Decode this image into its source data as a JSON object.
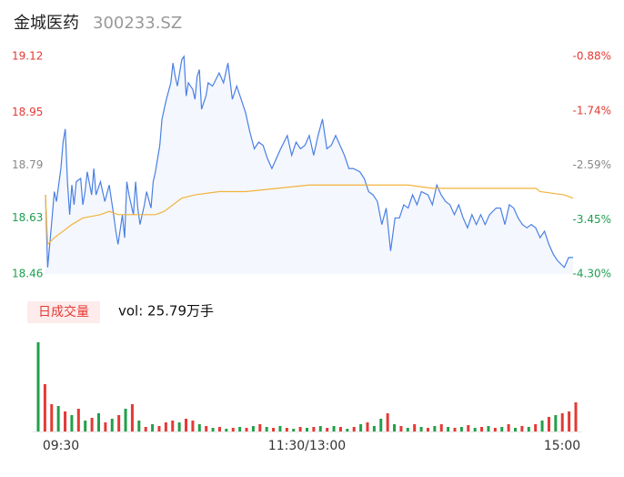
{
  "header": {
    "title": "金城医药",
    "code": "300233.SZ"
  },
  "chart_data": [
    {
      "type": "line",
      "xlim": [
        0,
        240
      ],
      "ylim": [
        18.46,
        19.12
      ],
      "yticks": [
        18.46,
        18.63,
        18.79,
        18.95,
        19.12
      ],
      "ytick_colors": [
        "#1e9e50",
        "#1e9e50",
        "#888888",
        "#e53935",
        "#e53935"
      ],
      "y2lim": [
        -4.3,
        -0.88
      ],
      "y2ticks": [
        {
          "value": -4.3,
          "label": "-4.30%"
        },
        {
          "value": -3.45,
          "label": "-3.45%"
        },
        {
          "value": -2.59,
          "label": "-2.59%"
        },
        {
          "value": -1.74,
          "label": "-1.74%"
        },
        {
          "value": -0.88,
          "label": "-0.88%"
        }
      ],
      "y2tick_colors": [
        "#1e9e50",
        "#1e9e50",
        "#888888",
        "#e53935",
        "#e53935"
      ],
      "area_color": "#f4f7fd",
      "series": [
        {
          "color": "#4a80e4",
          "x": [
            0,
            1,
            3,
            4,
            5,
            7,
            8,
            9,
            10,
            11,
            12,
            13,
            14,
            16,
            17,
            18,
            19,
            21,
            22,
            23,
            25,
            27,
            29,
            31,
            32,
            33,
            35,
            36,
            37,
            38,
            40,
            41,
            42,
            43,
            45,
            46,
            48,
            49,
            50,
            52,
            53,
            54,
            55,
            57,
            58,
            59,
            60,
            62,
            63,
            64,
            65,
            67,
            68,
            69,
            70,
            71,
            73,
            74,
            76,
            79,
            81,
            83,
            85,
            87,
            89,
            91,
            93,
            95,
            97,
            99,
            101,
            103,
            105,
            107,
            110,
            112,
            114,
            116,
            118,
            120,
            122,
            124,
            126,
            128,
            130,
            132,
            134,
            136,
            138,
            140,
            143,
            145,
            147,
            149,
            151,
            153,
            155,
            157,
            159,
            161,
            163,
            165,
            167,
            169,
            171,
            174,
            176,
            178,
            180,
            182,
            184,
            186,
            188,
            190,
            192,
            194,
            196,
            198,
            200,
            202,
            205,
            207,
            209,
            211,
            213,
            215,
            217,
            219,
            221,
            223,
            225,
            227,
            229,
            231,
            233,
            236,
            238,
            240
          ],
          "values": [
            18.7,
            18.48,
            18.63,
            18.71,
            18.68,
            18.78,
            18.86,
            18.9,
            18.74,
            18.64,
            18.73,
            18.67,
            18.74,
            18.75,
            18.67,
            18.71,
            18.77,
            18.7,
            18.78,
            18.7,
            18.74,
            18.68,
            18.73,
            18.64,
            18.59,
            18.55,
            18.64,
            18.57,
            18.74,
            18.7,
            18.64,
            18.74,
            18.66,
            18.61,
            18.67,
            18.71,
            18.66,
            18.74,
            18.77,
            18.85,
            18.93,
            18.96,
            18.99,
            19.04,
            19.1,
            19.06,
            19.03,
            19.11,
            19.12,
            19.0,
            19.04,
            19.02,
            18.99,
            19.06,
            19.08,
            18.96,
            19.0,
            19.04,
            19.03,
            19.07,
            19.04,
            19.1,
            18.99,
            19.03,
            18.99,
            18.95,
            18.89,
            18.84,
            18.86,
            18.85,
            18.81,
            18.78,
            18.81,
            18.84,
            18.88,
            18.82,
            18.86,
            18.84,
            18.85,
            18.88,
            18.82,
            18.88,
            18.93,
            18.84,
            18.85,
            18.88,
            18.85,
            18.82,
            18.78,
            18.78,
            18.77,
            18.75,
            18.71,
            18.7,
            18.68,
            18.61,
            18.66,
            18.53,
            18.63,
            18.63,
            18.67,
            18.66,
            18.7,
            18.67,
            18.71,
            18.7,
            18.67,
            18.73,
            18.7,
            18.68,
            18.67,
            18.64,
            18.67,
            18.63,
            18.6,
            18.64,
            18.61,
            18.64,
            18.61,
            18.64,
            18.66,
            18.66,
            18.61,
            18.67,
            18.66,
            18.63,
            18.61,
            18.6,
            18.61,
            18.6,
            18.57,
            18.59,
            18.55,
            18.52,
            18.5,
            18.48,
            18.51,
            18.51
          ]
        },
        {
          "color": "#f2b33d",
          "x": [
            0,
            1,
            4,
            8,
            12,
            17,
            25,
            29,
            33,
            45,
            50,
            54,
            58,
            62,
            68,
            79,
            91,
            120,
            165,
            176,
            223,
            225,
            236,
            240
          ],
          "values": [
            18.7,
            18.55,
            18.57,
            18.59,
            18.61,
            18.63,
            18.64,
            18.65,
            18.64,
            18.64,
            18.64,
            18.65,
            18.67,
            18.69,
            18.7,
            18.71,
            18.71,
            18.73,
            18.73,
            18.72,
            18.72,
            18.71,
            18.7,
            18.69
          ]
        }
      ]
    },
    {
      "type": "bar",
      "legend": "日成交量",
      "vol_label": "vol: 25.79万手",
      "xlim": [
        0,
        240
      ],
      "ylim": [
        0,
        10000
      ],
      "xticks": [
        {
          "value": 0,
          "label": "09:30"
        },
        {
          "value": 120,
          "label": "11:30/13:00"
        },
        {
          "value": 240,
          "label": "15:00"
        }
      ],
      "x": [
        0,
        3,
        6,
        9,
        12,
        15,
        18,
        21,
        24,
        27,
        30,
        33,
        36,
        39,
        42,
        45,
        48,
        51,
        54,
        57,
        60,
        63,
        66,
        69,
        72,
        75,
        78,
        81,
        84,
        87,
        90,
        93,
        96,
        99,
        102,
        105,
        108,
        111,
        114,
        117,
        120,
        123,
        126,
        129,
        132,
        135,
        138,
        141,
        144,
        147,
        150,
        153,
        156,
        159,
        162,
        165,
        168,
        171,
        174,
        177,
        180,
        183,
        186,
        189,
        192,
        195,
        198,
        201,
        204,
        207,
        210,
        213,
        216,
        219,
        222,
        225,
        228,
        231,
        234,
        237,
        240
      ],
      "values": [
        9800,
        5200,
        3000,
        2800,
        2200,
        1800,
        2500,
        1200,
        1500,
        2000,
        1000,
        1400,
        1800,
        2500,
        3000,
        1200,
        500,
        800,
        600,
        1000,
        1200,
        1000,
        1400,
        1200,
        800,
        600,
        400,
        500,
        300,
        400,
        500,
        400,
        600,
        800,
        500,
        400,
        600,
        400,
        300,
        500,
        400,
        500,
        600,
        400,
        600,
        500,
        300,
        500,
        800,
        1000,
        600,
        1400,
        2000,
        800,
        600,
        400,
        800,
        500,
        400,
        600,
        800,
        500,
        400,
        500,
        700,
        400,
        500,
        600,
        400,
        500,
        800,
        400,
        600,
        500,
        800,
        1200,
        1600,
        1800,
        2000,
        2200,
        3200
      ],
      "colors": [
        "#22a04a",
        "#e53935",
        "#e53935",
        "#22a04a",
        "#e53935",
        "#22a04a",
        "#e53935",
        "#22a04a",
        "#e53935",
        "#22a04a",
        "#e53935",
        "#22a04a",
        "#e53935",
        "#22a04a",
        "#e53935",
        "#22a04a",
        "#e53935",
        "#22a04a",
        "#e53935",
        "#e53935",
        "#e53935",
        "#22a04a",
        "#e53935",
        "#e53935",
        "#22a04a",
        "#e53935",
        "#22a04a",
        "#e53935",
        "#22a04a",
        "#e53935",
        "#22a04a",
        "#e53935",
        "#22a04a",
        "#e53935",
        "#22a04a",
        "#e53935",
        "#22a04a",
        "#e53935",
        "#22a04a",
        "#e53935",
        "#22a04a",
        "#e53935",
        "#22a04a",
        "#e53935",
        "#22a04a",
        "#e53935",
        "#22a04a",
        "#e53935",
        "#22a04a",
        "#e53935",
        "#22a04a",
        "#22a04a",
        "#e53935",
        "#22a04a",
        "#e53935",
        "#22a04a",
        "#e53935",
        "#22a04a",
        "#e53935",
        "#22a04a",
        "#e53935",
        "#22a04a",
        "#e53935",
        "#22a04a",
        "#e53935",
        "#22a04a",
        "#e53935",
        "#22a04a",
        "#e53935",
        "#22a04a",
        "#e53935",
        "#22a04a",
        "#e53935",
        "#22a04a",
        "#e53935",
        "#22a04a",
        "#e53935",
        "#22a04a",
        "#e53935",
        "#e53935",
        "#e53935"
      ]
    }
  ]
}
